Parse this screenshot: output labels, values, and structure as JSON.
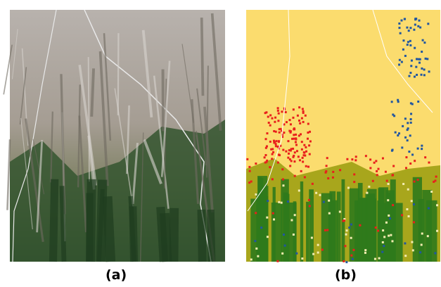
{
  "figure": {
    "panels": [
      {
        "label": "(a)"
      },
      {
        "label": "(b)"
      }
    ]
  }
}
